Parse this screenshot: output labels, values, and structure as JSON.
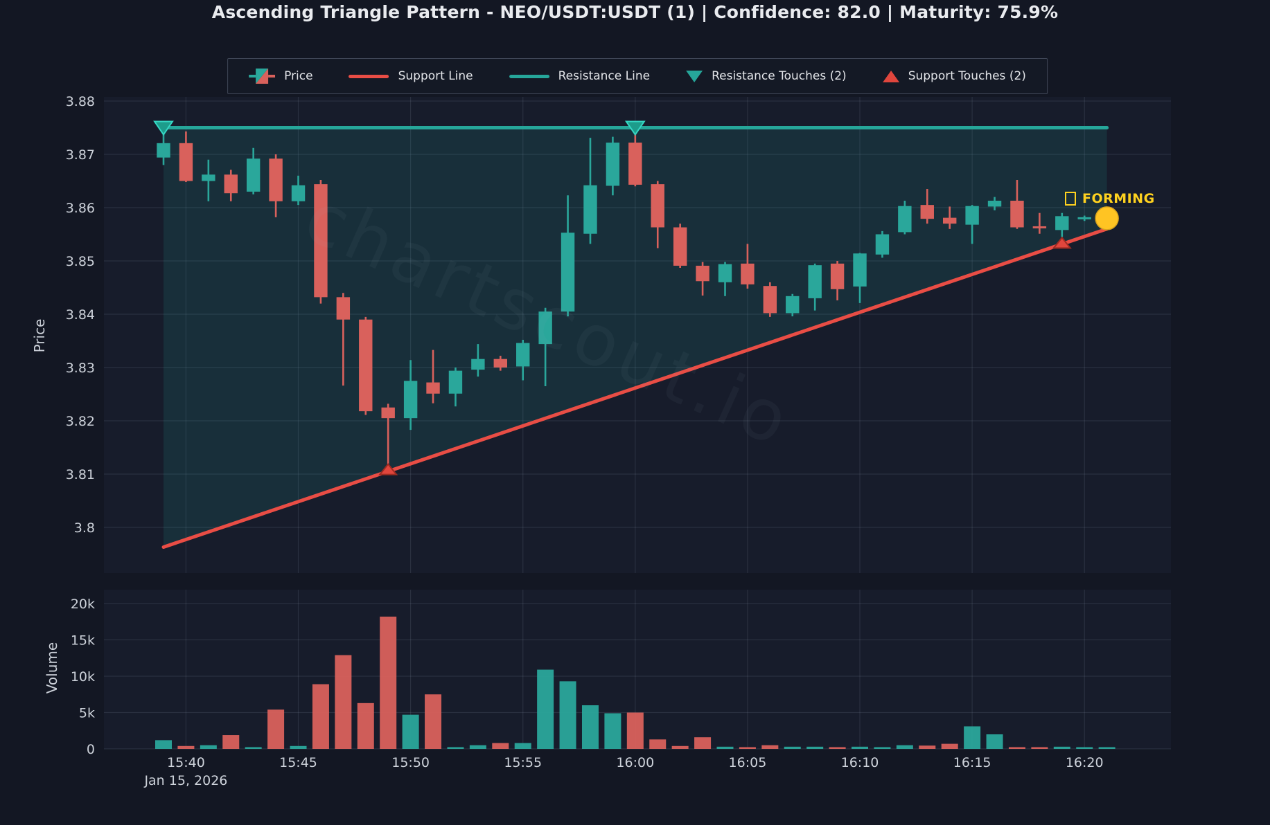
{
  "title": "Ascending Triangle Pattern - NEO/USDT:USDT (1) | Confidence: 82.0 | Maturity: 75.9%",
  "watermark": "chartscout.io",
  "status_label": {
    "icon": "box",
    "text": "FORMING",
    "color": "#ffd21f"
  },
  "legend": {
    "items": [
      {
        "label": "Price",
        "type": "candlestick"
      },
      {
        "label": "Support Line",
        "type": "line",
        "color": "#e94d45"
      },
      {
        "label": "Resistance Line",
        "type": "line",
        "color": "#26a69a"
      },
      {
        "label": "Resistance Touches (2)",
        "type": "triangle-down",
        "color": "#26a69a"
      },
      {
        "label": "Support Touches (2)",
        "type": "triangle-up",
        "color": "#e0463d"
      }
    ]
  },
  "axes": {
    "price": {
      "title": "Price",
      "ticks": [
        {
          "label": "3.88",
          "value": 3.88
        },
        {
          "label": "3.87",
          "value": 3.87
        },
        {
          "label": "3.86",
          "value": 3.86
        },
        {
          "label": "3.85",
          "value": 3.85
        },
        {
          "label": "3.84",
          "value": 3.84
        },
        {
          "label": "3.83",
          "value": 3.83
        },
        {
          "label": "3.82",
          "value": 3.82
        },
        {
          "label": "3.81",
          "value": 3.81
        },
        {
          "label": "3.8",
          "value": 3.8
        }
      ],
      "range": [
        3.791,
        3.881
      ]
    },
    "volume": {
      "title": "Volume",
      "ticks": [
        {
          "label": "20k",
          "value": 20000
        },
        {
          "label": "15k",
          "value": 15000
        },
        {
          "label": "10k",
          "value": 10000
        },
        {
          "label": "5k",
          "value": 5000
        },
        {
          "label": "0",
          "value": 0
        }
      ],
      "range": [
        0,
        22000
      ]
    },
    "time": {
      "ticks": [
        "15:40",
        "15:45",
        "15:50",
        "15:55",
        "16:00",
        "16:05",
        "16:10",
        "16:15",
        "16:20"
      ],
      "date_label": "Jan 15, 2026"
    }
  },
  "colors": {
    "background": "#131723",
    "plot_bg": "#171c2b",
    "grid": "rgba(170,186,210,0.13)",
    "up": "#2aa79b",
    "down": "#d9615c",
    "support_line": "#e94d45",
    "resistance_line": "#26a69a",
    "resistance_marker": "#26a69a",
    "support_marker": "#e0463d",
    "current_marker": "#ffc423",
    "pattern_fill": "rgba(38,166,154,0.14)",
    "axis_text": "#cdd2da"
  },
  "chart_data": {
    "type": "candlestick+volume",
    "symbol": "NEO/USDT:USDT",
    "pattern": "Ascending Triangle",
    "confidence": 82.0,
    "maturity_pct": 75.9,
    "date": "Jan 15, 2026",
    "times": [
      "15:39",
      "15:40",
      "15:41",
      "15:42",
      "15:43",
      "15:44",
      "15:45",
      "15:46",
      "15:47",
      "15:48",
      "15:49",
      "15:50",
      "15:51",
      "15:52",
      "15:53",
      "15:54",
      "15:55",
      "15:56",
      "15:57",
      "15:58",
      "15:59",
      "16:00",
      "16:01",
      "16:02",
      "16:03",
      "16:04",
      "16:05",
      "16:06",
      "16:07",
      "16:08",
      "16:09",
      "16:10",
      "16:11",
      "16:12",
      "16:13",
      "16:14",
      "16:15",
      "16:16",
      "16:17",
      "16:18",
      "16:19",
      "16:20",
      "16:21"
    ],
    "candles": [
      {
        "t": "15:39",
        "o": 3.8694,
        "h": 3.8752,
        "l": 3.868,
        "c": 3.8721,
        "v": 1200
      },
      {
        "t": "15:40",
        "o": 3.8721,
        "h": 3.8743,
        "l": 3.8648,
        "c": 3.865,
        "v": 400
      },
      {
        "t": "15:41",
        "o": 3.865,
        "h": 3.869,
        "l": 3.8612,
        "c": 3.8662,
        "v": 500
      },
      {
        "t": "15:42",
        "o": 3.8662,
        "h": 3.8671,
        "l": 3.8612,
        "c": 3.8627,
        "v": 1900
      },
      {
        "t": "15:43",
        "o": 3.863,
        "h": 3.8712,
        "l": 3.8625,
        "c": 3.8692,
        "v": 200
      },
      {
        "t": "15:44",
        "o": 3.8692,
        "h": 3.87,
        "l": 3.8582,
        "c": 3.8612,
        "v": 5400
      },
      {
        "t": "15:45",
        "o": 3.8612,
        "h": 3.866,
        "l": 3.8605,
        "c": 3.8642,
        "v": 400
      },
      {
        "t": "15:46",
        "o": 3.8644,
        "h": 3.8652,
        "l": 3.842,
        "c": 3.8432,
        "v": 8900
      },
      {
        "t": "15:47",
        "o": 3.8432,
        "h": 3.844,
        "l": 3.8266,
        "c": 3.839,
        "v": 12900
      },
      {
        "t": "15:48",
        "o": 3.839,
        "h": 3.8395,
        "l": 3.8211,
        "c": 3.8218,
        "v": 6300
      },
      {
        "t": "15:49",
        "o": 3.8225,
        "h": 3.8232,
        "l": 3.8107,
        "c": 3.8205,
        "v": 18200
      },
      {
        "t": "15:50",
        "o": 3.8205,
        "h": 3.8314,
        "l": 3.8183,
        "c": 3.8275,
        "v": 4700
      },
      {
        "t": "15:51",
        "o": 3.8272,
        "h": 3.8333,
        "l": 3.8233,
        "c": 3.8251,
        "v": 7500
      },
      {
        "t": "15:52",
        "o": 3.8251,
        "h": 3.83,
        "l": 3.8227,
        "c": 3.8294,
        "v": 200
      },
      {
        "t": "15:53",
        "o": 3.8296,
        "h": 3.8344,
        "l": 3.8283,
        "c": 3.8316,
        "v": 500
      },
      {
        "t": "15:54",
        "o": 3.8316,
        "h": 3.8322,
        "l": 3.8294,
        "c": 3.83,
        "v": 800
      },
      {
        "t": "15:55",
        "o": 3.8302,
        "h": 3.8352,
        "l": 3.8276,
        "c": 3.8346,
        "v": 800
      },
      {
        "t": "15:56",
        "o": 3.8344,
        "h": 3.8412,
        "l": 3.8265,
        "c": 3.8405,
        "v": 10900
      },
      {
        "t": "15:57",
        "o": 3.8405,
        "h": 3.8623,
        "l": 3.8396,
        "c": 3.8553,
        "v": 9300
      },
      {
        "t": "15:58",
        "o": 3.8551,
        "h": 3.8731,
        "l": 3.8532,
        "c": 3.8642,
        "v": 6000
      },
      {
        "t": "15:59",
        "o": 3.8641,
        "h": 3.8733,
        "l": 3.8623,
        "c": 3.8722,
        "v": 4900
      },
      {
        "t": "16:00",
        "o": 3.8722,
        "h": 3.8752,
        "l": 3.864,
        "c": 3.8643,
        "v": 5000
      },
      {
        "t": "16:01",
        "o": 3.8644,
        "h": 3.865,
        "l": 3.8524,
        "c": 3.8563,
        "v": 1300
      },
      {
        "t": "16:02",
        "o": 3.8563,
        "h": 3.857,
        "l": 3.8487,
        "c": 3.8491,
        "v": 400
      },
      {
        "t": "16:03",
        "o": 3.8491,
        "h": 3.8498,
        "l": 3.8435,
        "c": 3.8462,
        "v": 1600
      },
      {
        "t": "16:04",
        "o": 3.846,
        "h": 3.8498,
        "l": 3.8434,
        "c": 3.8494,
        "v": 300
      },
      {
        "t": "16:05",
        "o": 3.8495,
        "h": 3.8532,
        "l": 3.8448,
        "c": 3.8456,
        "v": 100
      },
      {
        "t": "16:06",
        "o": 3.8453,
        "h": 3.846,
        "l": 3.8395,
        "c": 3.8402,
        "v": 500
      },
      {
        "t": "16:07",
        "o": 3.8402,
        "h": 3.8438,
        "l": 3.8396,
        "c": 3.8434,
        "v": 300
      },
      {
        "t": "16:08",
        "o": 3.843,
        "h": 3.8495,
        "l": 3.8407,
        "c": 3.8492,
        "v": 300
      },
      {
        "t": "16:09",
        "o": 3.8495,
        "h": 3.85,
        "l": 3.8426,
        "c": 3.8447,
        "v": 100
      },
      {
        "t": "16:10",
        "o": 3.8452,
        "h": 3.8515,
        "l": 3.8421,
        "c": 3.8514,
        "v": 300
      },
      {
        "t": "16:11",
        "o": 3.8512,
        "h": 3.8556,
        "l": 3.8506,
        "c": 3.855,
        "v": 150
      },
      {
        "t": "16:12",
        "o": 3.8554,
        "h": 3.8613,
        "l": 3.855,
        "c": 3.8603,
        "v": 500
      },
      {
        "t": "16:13",
        "o": 3.8605,
        "h": 3.8635,
        "l": 3.857,
        "c": 3.8579,
        "v": 450
      },
      {
        "t": "16:14",
        "o": 3.8581,
        "h": 3.8602,
        "l": 3.856,
        "c": 3.857,
        "v": 700
      },
      {
        "t": "16:15",
        "o": 3.8568,
        "h": 3.8605,
        "l": 3.8532,
        "c": 3.8603,
        "v": 3100
      },
      {
        "t": "16:16",
        "o": 3.8602,
        "h": 3.862,
        "l": 3.8595,
        "c": 3.8613,
        "v": 2000
      },
      {
        "t": "16:17",
        "o": 3.8613,
        "h": 3.8652,
        "l": 3.856,
        "c": 3.8563,
        "v": 100
      },
      {
        "t": "16:18",
        "o": 3.8565,
        "h": 3.859,
        "l": 3.8551,
        "c": 3.8563,
        "v": 100
      },
      {
        "t": "16:19",
        "o": 3.8558,
        "h": 3.859,
        "l": 3.8545,
        "c": 3.8584,
        "v": 300
      },
      {
        "t": "16:20",
        "o": 3.858,
        "h": 3.8585,
        "l": 3.8575,
        "c": 3.8582,
        "v": 100
      },
      {
        "t": "16:21",
        "o": 3.8578,
        "h": 3.8582,
        "l": 3.8572,
        "c": 3.8578,
        "v": 100
      }
    ],
    "resistance_line": {
      "price": 3.875,
      "from": "15:39",
      "to": "16:21"
    },
    "support_line": {
      "from": {
        "time": "15:39",
        "price": 3.7963
      },
      "to": {
        "time": "16:21",
        "price": 3.856
      }
    },
    "resistance_touches": [
      {
        "time": "15:39",
        "price": 3.875
      },
      {
        "time": "16:00",
        "price": 3.875
      }
    ],
    "support_touches": [
      {
        "time": "15:49",
        "price": 3.8107
      },
      {
        "time": "16:19",
        "price": 3.8532
      }
    ],
    "current_marker": {
      "time": "16:21",
      "price": 3.858
    }
  }
}
